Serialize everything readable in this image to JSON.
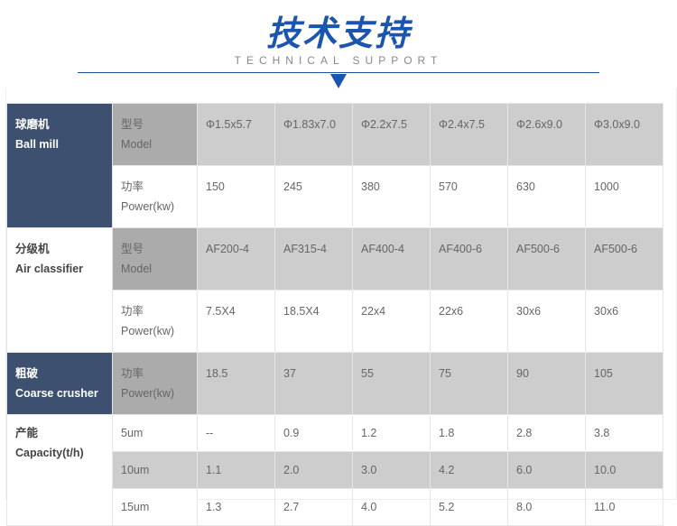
{
  "header": {
    "title": "技术支持",
    "subtitle": "TECHNICAL SUPPORT"
  },
  "ball_mill": {
    "cn": "球磨机",
    "en": "Ball mill",
    "model_cn": "型号",
    "model_en": "Model",
    "power_cn": "功率",
    "power_en": "Power(kw)",
    "models": [
      "Φ1.5x5.7",
      "Φ1.83x7.0",
      "Φ2.2x7.5",
      "Φ2.4x7.5",
      "Φ2.6x9.0",
      "Φ3.0x9.0"
    ],
    "power": [
      "150",
      "245",
      "380",
      "570",
      "630",
      "1000"
    ]
  },
  "air_classifier": {
    "cn": "分级机",
    "en": "Air classifier",
    "model_cn": "型号",
    "model_en": "Model",
    "power_cn": "功率",
    "power_en": "Power(kw)",
    "models": [
      "AF200-4",
      "AF315-4",
      "AF400-4",
      "AF400-6",
      "AF500-6",
      "AF500-6"
    ],
    "power": [
      "7.5X4",
      "18.5X4",
      "22x4",
      "22x6",
      "30x6",
      "30x6"
    ]
  },
  "coarse_crusher": {
    "cn": "粗破",
    "en": "Coarse crusher",
    "power_cn": "功率",
    "power_en": "Power(kw)",
    "power": [
      "18.5",
      "37",
      "55",
      "75",
      "90",
      "105"
    ]
  },
  "capacity": {
    "cn": "产能",
    "en": "Capacity(t/h)",
    "rows": [
      {
        "size": "5um",
        "values": [
          "--",
          "0.9",
          "1.2",
          "1.8",
          "2.8",
          "3.8"
        ]
      },
      {
        "size": "10um",
        "values": [
          "1.1",
          "2.0",
          "3.0",
          "4.2",
          "6.0",
          "10.0"
        ]
      },
      {
        "size": "15um",
        "values": [
          "1.3",
          "2.7",
          "4.0",
          "5.2",
          "8.0",
          "11.0"
        ]
      }
    ]
  }
}
